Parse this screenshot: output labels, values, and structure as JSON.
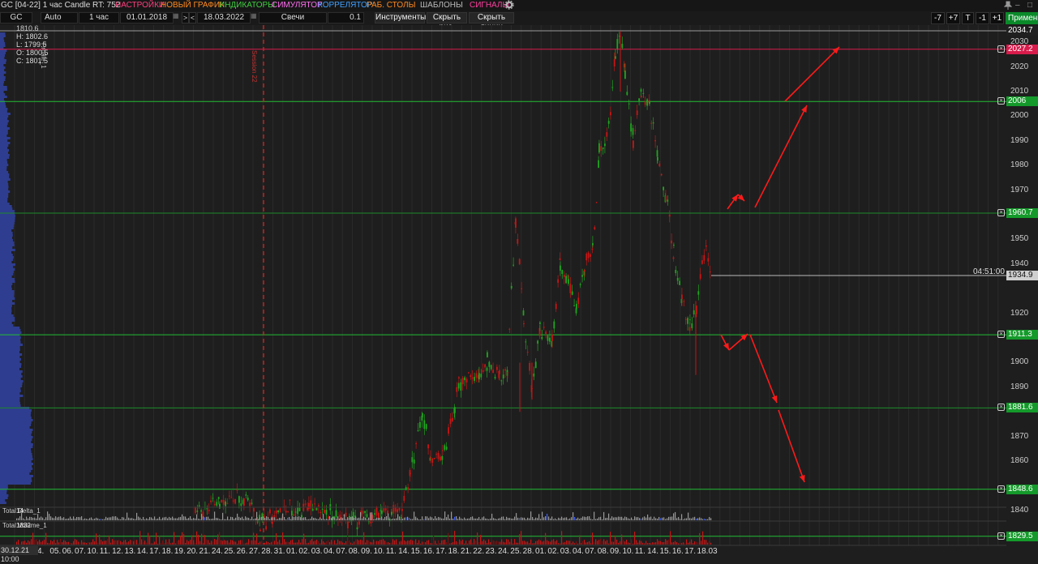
{
  "title_bar": {
    "app_title": "GC [04-22] 1 час Candle RT: 752",
    "menus": [
      {
        "label": "НАСТРОЙКИ",
        "color": "#ff3f7f"
      },
      {
        "label": "НОВЫЙ ГРАФИК",
        "color": "#ff8a1f"
      },
      {
        "label": "ИНДИКАТОРЫ",
        "color": "#3fcf3f"
      },
      {
        "label": "СИМУЛЯТОР",
        "color": "#ff6ff0"
      },
      {
        "label": "КОРРЕЛЯТОР",
        "color": "#3fa0ff"
      },
      {
        "label": "РАБ. СТОЛЫ",
        "color": "#ff8a1f"
      },
      {
        "label": "ШАБЛОНЫ",
        "color": "#bbbbbb"
      },
      {
        "label": "СИГНАЛЫ",
        "color": "#ff3fa0"
      }
    ],
    "settings_icon": "gear-icon",
    "pin_icon": "pin-icon",
    "minimize": "–",
    "maximize": "□"
  },
  "toolbar": {
    "symbol": "GC",
    "scale": "Auto",
    "timeframe": "1 час",
    "date_from": "01.01.2018",
    "nav_forward": ">",
    "nav_back": "<",
    "date_to": "18.03.2022",
    "chart_type": "Свечи",
    "step_value": "0.1",
    "tools_label": "Инструменты",
    "hide_drawings": "Скрыть рис.",
    "hide_lines": "Скрыть линии",
    "right_buttons": [
      "-7",
      "+7",
      "T",
      "-1",
      "+1"
    ],
    "apply_label": "Применить"
  },
  "ohlc": {
    "h": "H: 1802.6",
    "l": "L: 1799.5",
    "o": "O: 1800.5",
    "c": "C: 1801.5",
    "overlay": "1810.6"
  },
  "side_labels": {
    "session": "Session 22",
    "profile": "Profile_1"
  },
  "panes": {
    "delta_label": "Total Delta_1",
    "delta_value": "14",
    "volume_label": "Total Volume_1",
    "volume_value": "1832"
  },
  "price_levels": [
    {
      "label": "2034.7",
      "price": 2034.7,
      "bg": "#202020",
      "line": "#9a9a9a",
      "close": false
    },
    {
      "label": "2027.2",
      "price": 2027.2,
      "bg": "#d81b4b",
      "line": "#d81b4b",
      "close": true
    },
    {
      "label": "2006",
      "price": 2006,
      "bg": "#149a2a",
      "line": "#22bb33",
      "close": true
    },
    {
      "label": "1960.7",
      "price": 1960.7,
      "bg": "#149a2a",
      "line": "#1d8a2b",
      "close": true
    },
    {
      "label": "1911.3",
      "price": 1911.3,
      "bg": "#149a2a",
      "line": "#22bb33",
      "close": true
    },
    {
      "label": "1881.6",
      "price": 1881.6,
      "bg": "#149a2a",
      "line": "#1d8a2b",
      "close": true
    },
    {
      "label": "1848.6",
      "price": 1848.6,
      "bg": "#149a2a",
      "line": "#22bb33",
      "close": true
    },
    {
      "label": "1829.5",
      "price": 1829.5,
      "bg": "#149a2a",
      "line": "#22bb33",
      "close": true
    }
  ],
  "current_price": {
    "label": "1934.9",
    "price": 1934.9,
    "time": "04:51:00"
  },
  "y_axis": {
    "ticks": [
      "2030",
      "2020",
      "2010",
      "2000",
      "1990",
      "1980",
      "1970",
      "1950",
      "1940",
      "1920",
      "1900",
      "1890",
      "1870",
      "1860",
      "1840"
    ],
    "top_price": 2034.7,
    "bottom_price": 1829.5
  },
  "x_axis": {
    "start_date": "30.12.21 10:00",
    "labels": [
      "4.",
      "05.",
      "06.",
      "07.",
      "10.",
      "11.",
      "12.",
      "13.",
      "14.",
      "17.",
      "18.",
      "19.",
      "20.",
      "21.",
      "24.",
      "25.",
      "26.",
      "27.",
      "28.",
      "31.",
      "01.",
      "02.",
      "03.",
      "04.",
      "07.",
      "08.",
      "09.",
      "10.",
      "11.",
      "14.",
      "15.",
      "16.",
      "17.",
      "18.",
      "21.",
      "22.",
      "23.",
      "24.",
      "25.",
      "28.",
      "01.",
      "02.",
      "03.",
      "04.",
      "07.",
      "08.",
      "09.",
      "10.",
      "11.",
      "14.",
      "15.",
      "16.",
      "17.",
      "18.03"
    ]
  },
  "colors": {
    "bull": "#1fa51f",
    "bear": "#c81414",
    "arrow": "#ff1a1a",
    "profile": "#2e3d8f",
    "session_line": "#e02020"
  }
}
